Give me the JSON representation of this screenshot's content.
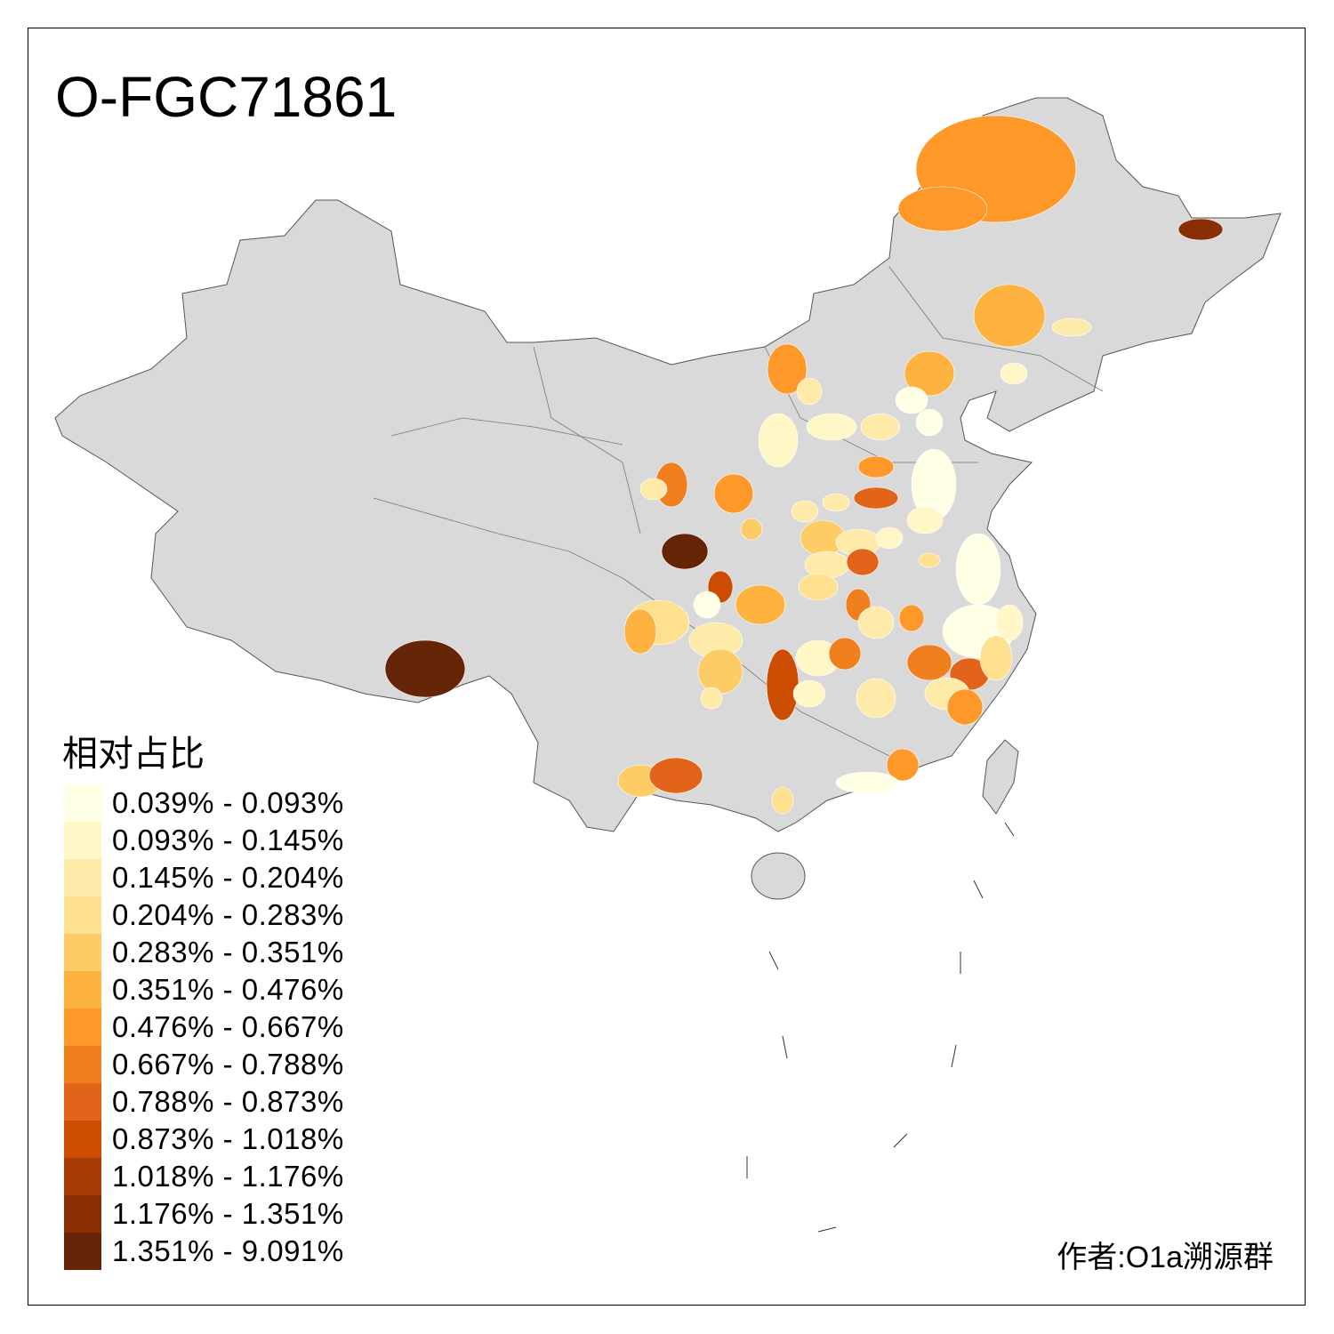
{
  "title": "O-FGC71861",
  "legend": {
    "title": "相对占比",
    "items": [
      {
        "label": "0.039% - 0.093%",
        "color": "#FFFFE5"
      },
      {
        "label": "0.093% - 0.145%",
        "color": "#FFF7C6"
      },
      {
        "label": "0.145% - 0.204%",
        "color": "#FEEBAA"
      },
      {
        "label": "0.204% - 0.283%",
        "color": "#FEE08F"
      },
      {
        "label": "0.283% - 0.351%",
        "color": "#FECC66"
      },
      {
        "label": "0.351% - 0.476%",
        "color": "#FEB340"
      },
      {
        "label": "0.476% - 0.667%",
        "color": "#FD9829"
      },
      {
        "label": "0.667% - 0.788%",
        "color": "#F07F1E"
      },
      {
        "label": "0.788% - 0.873%",
        "color": "#E1641A"
      },
      {
        "label": "0.873% - 1.018%",
        "color": "#CC4C02"
      },
      {
        "label": "1.018% - 1.176%",
        "color": "#A83C05"
      },
      {
        "label": "1.176% - 1.351%",
        "color": "#8A2E04"
      },
      {
        "label": "1.351% - 9.091%",
        "color": "#662506"
      }
    ]
  },
  "no_data_color": "#D9D9D9",
  "author": "作者:O1a溯源群"
}
